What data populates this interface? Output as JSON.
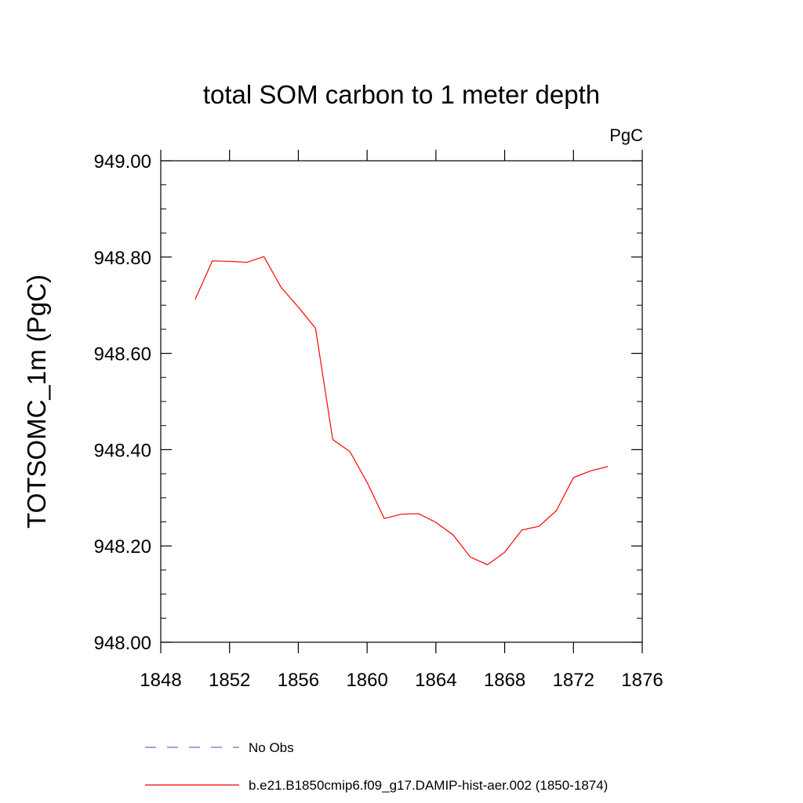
{
  "chart_data": {
    "type": "line",
    "title": "total SOM carbon to 1 meter depth",
    "units_label": "PgC",
    "xlabel": "",
    "ylabel": "TOTSOMC_1m  (PgC)",
    "xlim": [
      1848,
      1876
    ],
    "ylim": [
      948.0,
      949.0
    ],
    "x_ticks": [
      "1848",
      "1852",
      "1856",
      "1860",
      "1864",
      "1868",
      "1872",
      "1876"
    ],
    "y_ticks": [
      "948.00",
      "948.20",
      "948.40",
      "948.60",
      "948.80",
      "949.00"
    ],
    "series": [
      {
        "name": "b.e21.B1850cmip6.f09_g17.DAMIP-hist-aer.002 (1850-1874)",
        "color": "#ff0000",
        "dash": "solid",
        "x": [
          1850,
          1851,
          1852,
          1853,
          1854,
          1855,
          1856,
          1857,
          1858,
          1859,
          1860,
          1861,
          1862,
          1863,
          1864,
          1865,
          1866,
          1867,
          1868,
          1869,
          1870,
          1871,
          1872,
          1873,
          1874
        ],
        "y": [
          948.712,
          948.792,
          948.791,
          948.789,
          948.801,
          948.737,
          948.696,
          948.652,
          948.421,
          948.396,
          948.332,
          948.257,
          948.266,
          948.267,
          948.249,
          948.223,
          948.177,
          948.161,
          948.187,
          948.233,
          948.241,
          948.273,
          948.342,
          948.356,
          948.365
        ]
      }
    ],
    "legend": {
      "placement": "bottom",
      "entries": [
        {
          "label": "No Obs",
          "color": "#6b6bcf",
          "dash": "dashed"
        },
        {
          "label": "b.e21.B1850cmip6.f09_g17.DAMIP-hist-aer.002 (1850-1874)",
          "color": "#ff0000",
          "dash": "solid"
        }
      ]
    }
  }
}
